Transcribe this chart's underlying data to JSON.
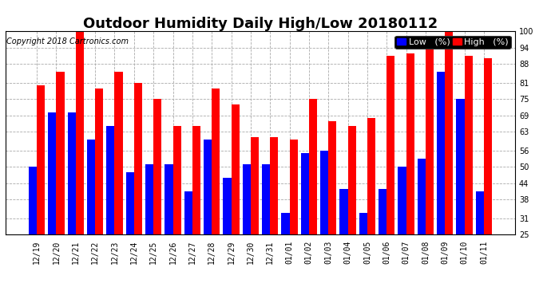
{
  "title": "Outdoor Humidity Daily High/Low 20180112",
  "copyright": "Copyright 2018 Cartronics.com",
  "categories": [
    "12/19",
    "12/20",
    "12/21",
    "12/22",
    "12/23",
    "12/24",
    "12/25",
    "12/26",
    "12/27",
    "12/28",
    "12/29",
    "12/30",
    "12/31",
    "01/01",
    "01/02",
    "01/03",
    "01/04",
    "01/05",
    "01/06",
    "01/07",
    "01/08",
    "01/09",
    "01/10",
    "01/11"
  ],
  "high_values": [
    80,
    85,
    100,
    79,
    85,
    81,
    75,
    65,
    65,
    79,
    73,
    61,
    61,
    60,
    75,
    67,
    65,
    68,
    91,
    92,
    94,
    100,
    91,
    90
  ],
  "low_values": [
    50,
    70,
    70,
    60,
    65,
    48,
    51,
    51,
    41,
    60,
    46,
    51,
    51,
    33,
    55,
    56,
    42,
    33,
    42,
    50,
    53,
    85,
    75,
    41
  ],
  "high_color": "#ff0000",
  "low_color": "#0000ff",
  "bg_color": "#ffffff",
  "plot_bg_color": "#ffffff",
  "grid_color": "#aaaaaa",
  "ylim_min": 25,
  "ylim_max": 100,
  "yticks": [
    25,
    31,
    38,
    44,
    50,
    56,
    63,
    69,
    75,
    81,
    88,
    94,
    100
  ],
  "bar_width": 0.42,
  "title_fontsize": 13,
  "tick_fontsize": 7,
  "copyright_fontsize": 7,
  "legend_fontsize": 8
}
